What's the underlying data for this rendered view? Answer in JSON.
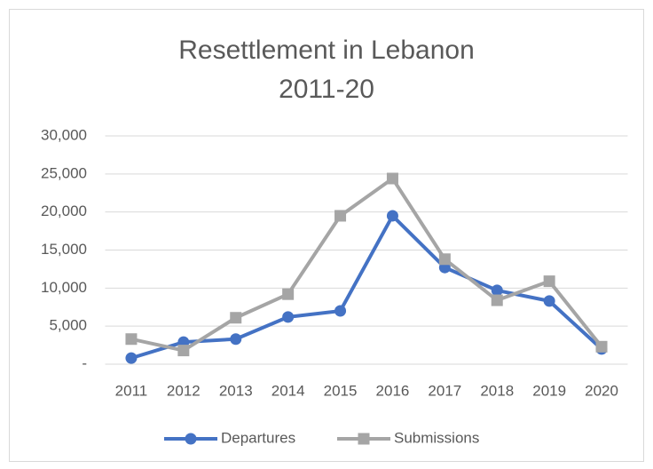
{
  "chart_data": {
    "type": "line",
    "title": [
      "Resettlement in Lebanon",
      "2011-20"
    ],
    "categories": [
      "2011",
      "2012",
      "2013",
      "2014",
      "2015",
      "2016",
      "2017",
      "2018",
      "2019",
      "2020"
    ],
    "series": [
      {
        "name": "Departures",
        "color": "#4472c4",
        "marker": "circle",
        "values": [
          800,
          2900,
          3300,
          6200,
          7000,
          19500,
          12700,
          9700,
          8300,
          2000
        ]
      },
      {
        "name": "Submissions",
        "color": "#a5a5a5",
        "marker": "square",
        "values": [
          3300,
          1800,
          6100,
          9200,
          19500,
          24400,
          13800,
          8400,
          10900,
          2300
        ]
      }
    ],
    "ylim": [
      0,
      30000
    ],
    "yticks": [
      {
        "value": 0,
        "label": "-"
      },
      {
        "value": 5000,
        "label": "5,000"
      },
      {
        "value": 10000,
        "label": "10,000"
      },
      {
        "value": 15000,
        "label": "15,000"
      },
      {
        "value": 20000,
        "label": "20,000"
      },
      {
        "value": 25000,
        "label": "25,000"
      },
      {
        "value": 30000,
        "label": "30,000"
      }
    ],
    "grid": true,
    "legend": "bottom"
  }
}
